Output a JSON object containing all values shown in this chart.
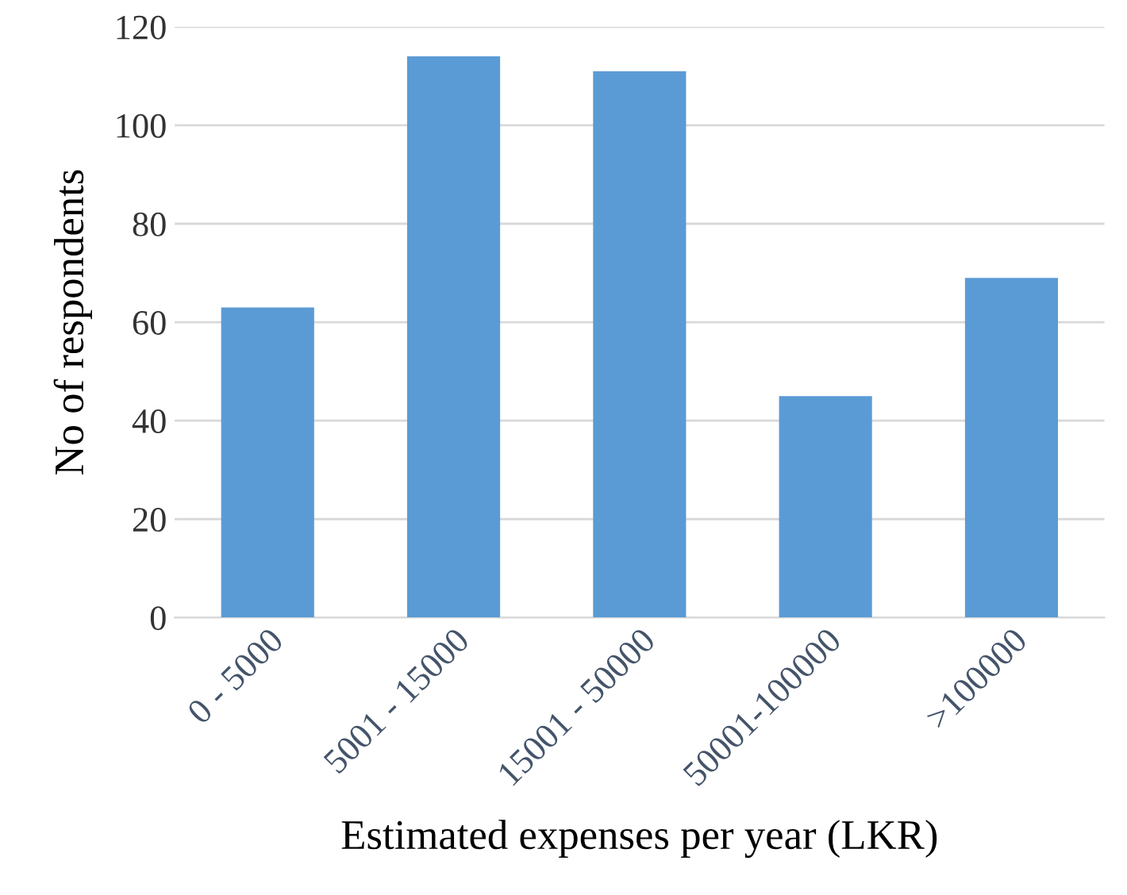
{
  "chart_data": {
    "type": "bar",
    "xlabel": "Estimated expenses per year (LKR)",
    "ylabel": "No of respondents",
    "categories": [
      "0 - 5000",
      "5001 - 15000",
      "15001 - 50000",
      "50001-100000",
      ">100000"
    ],
    "values": [
      63,
      114,
      111,
      45,
      69
    ],
    "color": "#5b9bd5",
    "ylim": [
      0,
      120
    ],
    "yticks": [
      0,
      20,
      40,
      60,
      80,
      100,
      120
    ],
    "grid": "y",
    "legend": false
  }
}
